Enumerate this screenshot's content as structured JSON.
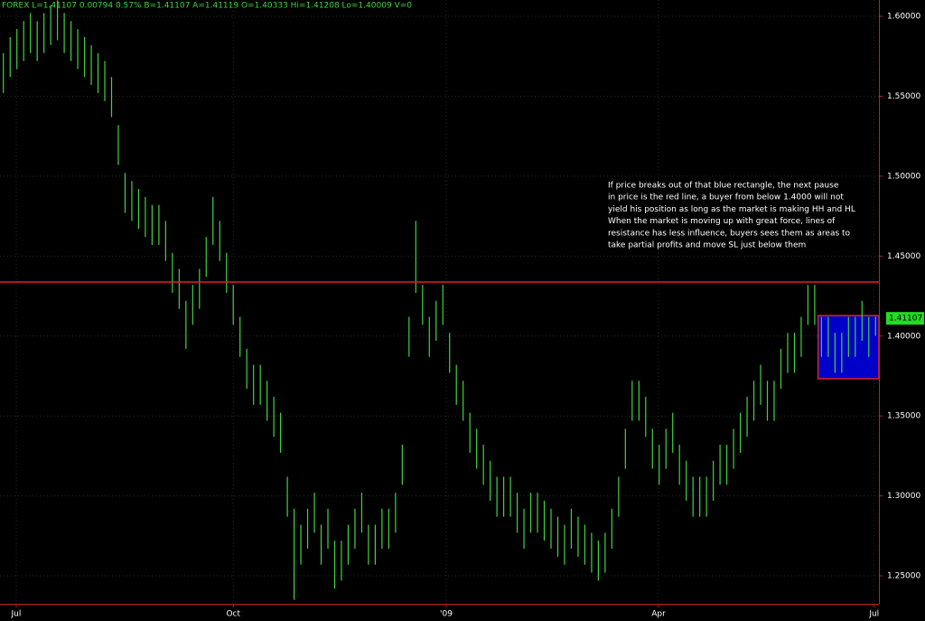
{
  "chart_data": {
    "type": "ohlc",
    "title": "FOREX  L=1.41107  0.00794  0.57%  B=1.41107  A=1.41119  O=1.40333  Hi=1.41208  Lo=1.40009  V=0",
    "color": "#3fd43f",
    "xlim": [
      0,
      130
    ],
    "xticks": [
      {
        "value": 2.4,
        "label": "Jul"
      },
      {
        "value": 34.5,
        "label": "Oct"
      },
      {
        "value": 66,
        "label": "'09"
      },
      {
        "value": 97.4,
        "label": "Apr"
      },
      {
        "value": 129.3,
        "label": "Jul"
      }
    ],
    "ylim": [
      1.2325,
      1.6102
    ],
    "yticks": [
      {
        "value": 1.25,
        "label": "1.25000"
      },
      {
        "value": 1.3,
        "label": "1.30000"
      },
      {
        "value": 1.35,
        "label": "1.35000"
      },
      {
        "value": 1.4,
        "label": "1.40000"
      },
      {
        "value": 1.45,
        "label": "1.45000"
      },
      {
        "value": 1.5,
        "label": "1.50000"
      },
      {
        "value": 1.55,
        "label": "1.55000"
      },
      {
        "value": 1.6,
        "label": "1.60000"
      }
    ],
    "grid": true,
    "high": [
      1.577,
      1.587,
      1.592,
      1.597,
      1.602,
      1.597,
      1.602,
      1.607,
      1.61,
      1.602,
      1.597,
      1.592,
      1.587,
      1.582,
      1.577,
      1.572,
      1.562,
      1.532,
      1.502,
      1.497,
      1.492,
      1.487,
      1.482,
      1.482,
      1.472,
      1.452,
      1.442,
      1.422,
      1.432,
      1.442,
      1.462,
      1.487,
      1.472,
      1.452,
      1.432,
      1.412,
      1.392,
      1.382,
      1.382,
      1.372,
      1.362,
      1.352,
      1.312,
      1.292,
      1.282,
      1.292,
      1.302,
      1.282,
      1.292,
      1.272,
      1.272,
      1.282,
      1.292,
      1.302,
      1.282,
      1.282,
      1.292,
      1.292,
      1.302,
      1.332,
      1.412,
      1.472,
      1.432,
      1.412,
      1.422,
      1.432,
      1.402,
      1.382,
      1.372,
      1.352,
      1.342,
      1.332,
      1.322,
      1.312,
      1.312,
      1.312,
      1.302,
      1.292,
      1.302,
      1.302,
      1.297,
      1.292,
      1.287,
      1.282,
      1.292,
      1.287,
      1.282,
      1.277,
      1.272,
      1.277,
      1.292,
      1.312,
      1.342,
      1.372,
      1.372,
      1.362,
      1.342,
      1.332,
      1.342,
      1.352,
      1.332,
      1.322,
      1.312,
      1.312,
      1.312,
      1.322,
      1.332,
      1.332,
      1.342,
      1.352,
      1.362,
      1.372,
      1.382,
      1.372,
      1.372,
      1.392,
      1.402,
      1.402,
      1.412,
      1.432,
      1.432,
      1.412,
      1.412,
      1.402,
      1.402,
      1.412,
      1.412,
      1.422,
      1.412,
      1.41208
    ],
    "low": [
      1.552,
      1.562,
      1.567,
      1.572,
      1.577,
      1.572,
      1.577,
      1.582,
      1.585,
      1.577,
      1.572,
      1.567,
      1.562,
      1.557,
      1.552,
      1.547,
      1.537,
      1.507,
      1.477,
      1.472,
      1.467,
      1.462,
      1.457,
      1.457,
      1.447,
      1.427,
      1.417,
      1.392,
      1.407,
      1.417,
      1.437,
      1.457,
      1.447,
      1.427,
      1.407,
      1.387,
      1.367,
      1.357,
      1.357,
      1.347,
      1.337,
      1.327,
      1.287,
      1.235,
      1.257,
      1.267,
      1.277,
      1.257,
      1.267,
      1.242,
      1.247,
      1.257,
      1.267,
      1.277,
      1.257,
      1.257,
      1.267,
      1.267,
      1.277,
      1.307,
      1.387,
      1.427,
      1.407,
      1.387,
      1.397,
      1.407,
      1.377,
      1.357,
      1.347,
      1.327,
      1.317,
      1.307,
      1.297,
      1.287,
      1.287,
      1.287,
      1.277,
      1.267,
      1.277,
      1.277,
      1.272,
      1.267,
      1.262,
      1.257,
      1.267,
      1.262,
      1.257,
      1.252,
      1.247,
      1.252,
      1.267,
      1.287,
      1.317,
      1.347,
      1.347,
      1.337,
      1.317,
      1.307,
      1.317,
      1.327,
      1.307,
      1.297,
      1.287,
      1.287,
      1.287,
      1.297,
      1.307,
      1.307,
      1.317,
      1.327,
      1.337,
      1.347,
      1.357,
      1.347,
      1.347,
      1.367,
      1.377,
      1.377,
      1.387,
      1.407,
      1.407,
      1.387,
      1.387,
      1.377,
      1.377,
      1.387,
      1.387,
      1.397,
      1.387,
      1.40009
    ],
    "last_price": 1.41107,
    "hline": {
      "value": 1.4338,
      "color": "#e02020"
    },
    "box": {
      "xlim": [
        121,
        130
      ],
      "ylim": [
        1.3733,
        1.4128
      ],
      "color": "#0000c8",
      "edge": "#e02020"
    },
    "annotation": [
      "If price breaks out of that blue rectangle, the next pause",
      "in price is the red line, a buyer from below 1.4000 will not",
      "yield his position as long as the market is making HH and HL",
      "When the market is moving up with great force, lines of",
      "resistance has less influence, buyers sees them as areas to",
      "take partial profits and move SL just below them"
    ]
  }
}
